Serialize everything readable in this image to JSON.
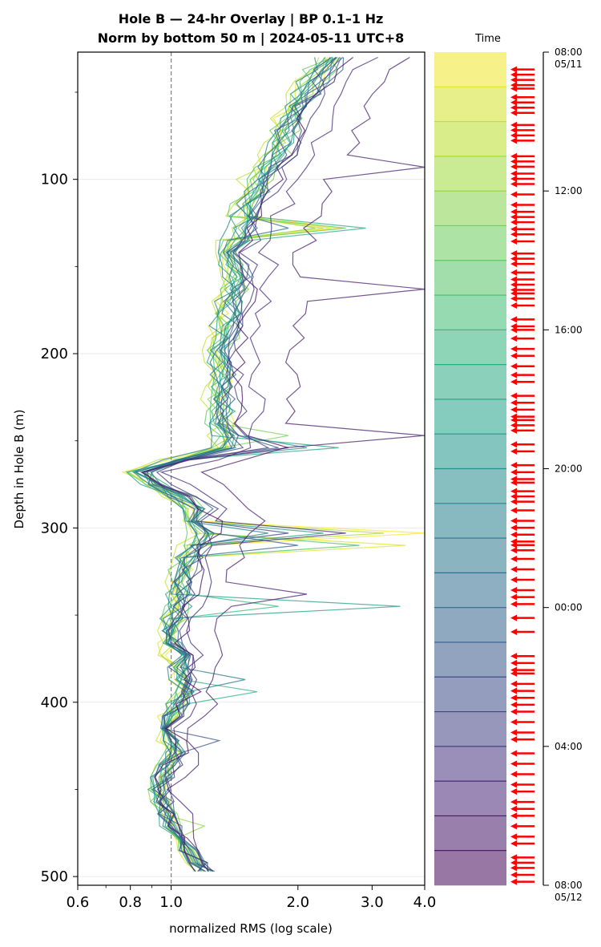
{
  "chart_data": {
    "type": "line",
    "title_line1": "Hole B — 24-hr Overlay  |  BP 0.1–1 Hz",
    "title_line2": "Norm by bottom 50 m  |  2024-05-11 UTC+8",
    "xlabel": "normalized RMS  (log scale)",
    "ylabel": "Depth in Hole B (m)",
    "x_scale": "log",
    "xlim": [
      0.6,
      4.0
    ],
    "ylim": [
      505,
      27
    ],
    "y_inverted": true,
    "x_ticks": [
      "0.6",
      "0.8",
      "1.0",
      "2.0",
      "3.0",
      "4.0"
    ],
    "y_ticks": [
      "100",
      "200",
      "300",
      "400",
      "500"
    ],
    "reference_line_x": 1.0,
    "grid": "horizontal",
    "colormap": "viridis",
    "colorbar": {
      "title": "Time",
      "ticks": [
        {
          "line1": "08:00",
          "line2": "05/11"
        },
        {
          "line1": "12:00",
          "line2": ""
        },
        {
          "line1": "16:00",
          "line2": ""
        },
        {
          "line1": "20:00",
          "line2": ""
        },
        {
          "line1": "00:00",
          "line2": ""
        },
        {
          "line1": "04:00",
          "line2": ""
        },
        {
          "line1": "08:00",
          "line2": "05/12"
        }
      ],
      "bands": 24,
      "arrow_color": "#ff0000",
      "arrow_times_hours": [
        0.5,
        0.65,
        0.8,
        0.95,
        1.05,
        1.3,
        1.45,
        1.6,
        1.75,
        2.1,
        2.25,
        2.4,
        2.55,
        3.0,
        3.15,
        3.3,
        3.5,
        3.65,
        3.8,
        4.1,
        4.4,
        4.6,
        4.75,
        4.9,
        5.1,
        5.25,
        5.45,
        5.8,
        5.95,
        6.1,
        6.35,
        6.55,
        6.7,
        6.85,
        6.95,
        7.1,
        7.3,
        7.7,
        7.9,
        8.0,
        8.25,
        8.55,
        8.75,
        9.05,
        9.3,
        9.5,
        9.9,
        10.1,
        10.3,
        10.5,
        10.6,
        10.75,
        10.9,
        11.3,
        11.5,
        11.9,
        12.1,
        12.3,
        12.4,
        12.65,
        12.8,
        12.95,
        13.2,
        13.5,
        13.7,
        13.9,
        14.1,
        14.2,
        14.35,
        14.6,
        14.9,
        15.2,
        15.5,
        15.7,
        15.9,
        16.3,
        16.7,
        17.4,
        17.6,
        17.8,
        17.9,
        18.2,
        18.4,
        18.6,
        18.8,
        19.0,
        19.3,
        19.6,
        19.8,
        20.2,
        20.5,
        20.8,
        21.1,
        21.3,
        21.6,
        21.8,
        22.0,
        22.3,
        22.6,
        22.8,
        23.2,
        23.35,
        23.5,
        23.7,
        23.9
      ]
    },
    "depth_grid_m": [
      30,
      37,
      44,
      51,
      58,
      65,
      72,
      79,
      86,
      93,
      100,
      107,
      114,
      121,
      128,
      135,
      142,
      149,
      156,
      163,
      170,
      177,
      184,
      191,
      198,
      205,
      212,
      219,
      226,
      233,
      240,
      247,
      254,
      261,
      268,
      275,
      282,
      289,
      296,
      303,
      310,
      317,
      324,
      331,
      338,
      345,
      352,
      359,
      366,
      373,
      380,
      387,
      394,
      401,
      408,
      415,
      422,
      429,
      436,
      443,
      450,
      457,
      464,
      471,
      478,
      485,
      492,
      497
    ],
    "base_profile": [
      2.45,
      2.3,
      2.2,
      2.1,
      2.0,
      1.95,
      1.9,
      1.85,
      1.8,
      1.72,
      1.65,
      1.6,
      1.55,
      1.52,
      1.48,
      1.45,
      1.42,
      1.42,
      1.45,
      1.43,
      1.4,
      1.38,
      1.37,
      1.36,
      1.35,
      1.34,
      1.33,
      1.32,
      1.32,
      1.33,
      1.35,
      1.37,
      1.35,
      1.05,
      0.85,
      0.92,
      1.05,
      1.15,
      1.18,
      1.2,
      1.15,
      1.1,
      1.08,
      1.06,
      1.05,
      1.04,
      1.02,
      1.0,
      1.01,
      1.03,
      1.05,
      1.07,
      1.08,
      1.05,
      1.0,
      0.98,
      1.0,
      1.02,
      0.98,
      0.95,
      0.93,
      0.95,
      0.98,
      1.0,
      1.05,
      1.1,
      1.15,
      1.2
    ],
    "series": [
      {
        "hour": 0.0,
        "scale": 1.0,
        "spikes": [
          [
            128,
            2.5
          ],
          [
            303,
            4.0
          ]
        ]
      },
      {
        "hour": 1.0,
        "scale": 0.95,
        "spikes": [
          [
            128,
            2.4
          ],
          [
            310,
            3.6
          ]
        ]
      },
      {
        "hour": 2.0,
        "scale": 0.92,
        "spikes": [
          [
            130,
            2.3
          ]
        ]
      },
      {
        "hour": 3.0,
        "scale": 0.96,
        "spikes": [
          [
            303,
            3.2
          ]
        ]
      },
      {
        "hour": 4.0,
        "scale": 0.98,
        "spikes": [
          [
            128,
            2.2
          ],
          [
            473,
            1.2
          ]
        ]
      },
      {
        "hour": 5.0,
        "scale": 1.02,
        "spikes": [
          [
            245,
            1.9
          ]
        ]
      },
      {
        "hour": 6.0,
        "scale": 0.94,
        "spikes": [
          [
            128,
            2.6
          ]
        ]
      },
      {
        "hour": 7.0,
        "scale": 0.97,
        "spikes": [
          [
            310,
            2.8
          ]
        ]
      },
      {
        "hour": 8.0,
        "scale": 0.99,
        "spikes": [
          [
            343,
            1.8
          ]
        ]
      },
      {
        "hour": 9.0,
        "scale": 1.01,
        "spikes": [
          [
            128,
            2.9
          ],
          [
            391,
            1.6
          ]
        ]
      },
      {
        "hour": 10.0,
        "scale": 0.96,
        "spikes": [
          [
            252,
            2.5
          ]
        ]
      },
      {
        "hour": 11.0,
        "scale": 1.0,
        "spikes": [
          [
            303,
            2.3
          ],
          [
            343,
            3.5
          ]
        ]
      },
      {
        "hour": 12.0,
        "scale": 1.03,
        "spikes": [
          [
            252,
            2.1
          ]
        ]
      },
      {
        "hour": 13.0,
        "scale": 0.95,
        "spikes": [
          [
            303,
            1.7
          ]
        ]
      },
      {
        "hour": 14.0,
        "scale": 1.0,
        "spikes": [
          [
            389,
            1.5
          ]
        ]
      },
      {
        "hour": 15.0,
        "scale": 0.98,
        "spikes": [
          [
            128,
            1.9
          ]
        ]
      },
      {
        "hour": 16.0,
        "scale": 1.02,
        "spikes": [
          [
            310,
            2.0
          ]
        ]
      },
      {
        "hour": 17.0,
        "scale": 1.05,
        "spikes": [
          [
            252,
            1.8
          ]
        ]
      },
      {
        "hour": 18.0,
        "scale": 1.0,
        "spikes": [
          [
            425,
            1.3
          ]
        ]
      },
      {
        "hour": 19.0,
        "scale": 1.04,
        "spikes": [
          [
            303,
            1.9
          ]
        ]
      },
      {
        "hour": 20.0,
        "scale": 1.08,
        "spikes": [
          [
            252,
            1.7
          ]
        ]
      },
      {
        "hour": 21.0,
        "scale": 1.2,
        "spikes": [
          [
            303,
            2.6
          ]
        ]
      },
      {
        "hour": 22.0,
        "scale": 1.45,
        "spikes": [
          [
            90,
            4.0
          ],
          [
            160,
            4.0
          ],
          [
            250,
            4.0
          ],
          [
            340,
            2.1
          ]
        ]
      },
      {
        "hour": 23.0,
        "scale": 1.08,
        "spikes": [
          [
            252,
            1.9
          ]
        ]
      }
    ]
  }
}
